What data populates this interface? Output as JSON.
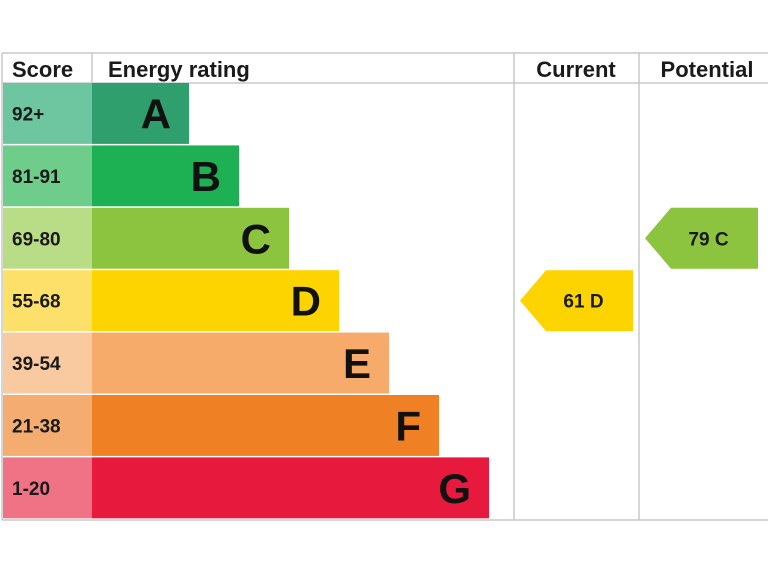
{
  "headers": {
    "score": "Score",
    "rating": "Energy rating",
    "current": "Current",
    "potential": "Potential"
  },
  "chart_data": {
    "type": "bar",
    "categories": [
      "92+",
      "81-91",
      "69-80",
      "55-68",
      "39-54",
      "21-38",
      "1-20"
    ],
    "bands": [
      {
        "letter": "A",
        "score": "92+",
        "color": "#2f9f6e",
        "score_bg": "#6ec6a0"
      },
      {
        "letter": "B",
        "score": "81-91",
        "color": "#1db154",
        "score_bg": "#6fcd8b"
      },
      {
        "letter": "C",
        "score": "69-80",
        "color": "#8cc43f",
        "score_bg": "#b9dc86"
      },
      {
        "letter": "D",
        "score": "55-68",
        "color": "#fdd300",
        "score_bg": "#fde06a"
      },
      {
        "letter": "E",
        "score": "39-54",
        "color": "#f6ab6b",
        "score_bg": "#f9c99f"
      },
      {
        "letter": "F",
        "score": "21-38",
        "color": "#ef8124",
        "score_bg": "#f4ac70"
      },
      {
        "letter": "G",
        "score": "1-20",
        "color": "#e7193d",
        "score_bg": "#ef7285"
      }
    ],
    "current": {
      "value": 61,
      "band": "D",
      "label": "61  D",
      "color": "#fdd300"
    },
    "potential": {
      "value": 79,
      "band": "C",
      "label": "79  C",
      "color": "#8cc43f"
    }
  }
}
